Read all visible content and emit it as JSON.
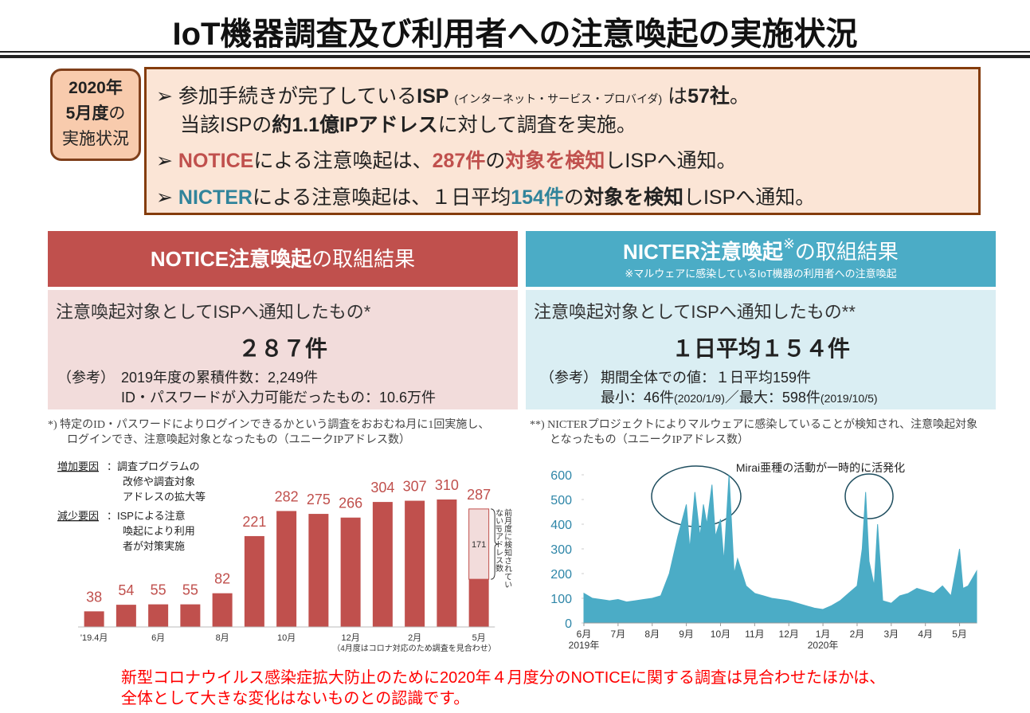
{
  "title": "IoT機器調査及び利用者への注意喚起の実施状況",
  "status_label": [
    "2020年",
    "5月度",
    "の",
    "実施状況"
  ],
  "summary": {
    "line1": [
      "参加手続きが完了している",
      "ISP",
      "(インターネット・サービス・プロバイダ)",
      "は",
      "57社",
      "。"
    ],
    "line2": [
      "当該ISPの",
      "約1.1億IPアドレス",
      "に対して調査を実施。"
    ],
    "line3": [
      "NOTICE",
      "による注意喚起は、",
      "287件",
      "の",
      "対象を検知",
      "しISPへ通知。"
    ],
    "line4": [
      "NICTER",
      "による注意喚起は、１日平均",
      "154件",
      "の",
      "対象を検知",
      "しISPへ通知。"
    ]
  },
  "notice": {
    "header": [
      "NOTICE注意喚起",
      "の取組結果"
    ],
    "subject": "注意喚起対象としてISPへ通知したもの*",
    "count": "２８７件",
    "ref_label": "（参考）",
    "ref": [
      "2019年度の累積件数：2,249件",
      "ID・パスワードが入力可能だったもの：10.6万件"
    ],
    "footnote": [
      "*) 特定のID・パスワードによりログインできるかという調査をおおむね月に1回実施し、",
      "ログインでき、注意喚起対象となったもの（ユニークIPアドレス数）"
    ]
  },
  "nicter": {
    "header": [
      "NICTER注意喚起",
      "※",
      "の取組結果"
    ],
    "header_note": "※マルウェアに感染しているIoT機器の利用者への注意喚起",
    "subject": "注意喚起対象としてISPへ通知したもの**",
    "count": "１日平均１５４件",
    "ref_label": "（参考）",
    "ref_line1": "期間全体での値：１日平均159件",
    "ref_line2": [
      "最小：46件",
      "(2020/1/9)",
      "／最大：598件",
      "(2019/10/5)"
    ],
    "footnote": [
      "**) NICTERプロジェクトによりマルウェアに感染していることが検知され、注意喚起対象",
      "となったもの（ユニークIPアドレス数）"
    ]
  },
  "chart_data": [
    {
      "type": "bar",
      "categories": [
        "'19.4月",
        null,
        "6月",
        null,
        "8月",
        null,
        "10月",
        null,
        "12月",
        null,
        "2月",
        null,
        "5月"
      ],
      "values": [
        38,
        54,
        55,
        55,
        82,
        221,
        282,
        275,
        266,
        304,
        307,
        310,
        287
      ],
      "color": "#c0504d",
      "highlight": {
        "category": "5月",
        "value": 171,
        "label": "前月度に検知されていないIPアドレス数",
        "color": "#f2dcdb"
      },
      "notes": [
        {
          "label": "増加要因",
          "lines": [
            "：調査プログラムの",
            "改修や調査対象",
            "アドレスの拡大等"
          ]
        },
        {
          "label": "減少要因",
          "lines": [
            "：ISPによる注意",
            "喚起により利用",
            "者が対策実施"
          ]
        }
      ],
      "footnote": "（4月度はコロナ対応のため調査を見合わせ）"
    },
    {
      "type": "area",
      "title": "Mirai亜種の活動が一時的に活発化",
      "color": "#4bacc6",
      "x": [
        0,
        0.25,
        0.5,
        0.75,
        1,
        1.25,
        1.5,
        1.75,
        2,
        2.25,
        2.5,
        2.75,
        3,
        3.1,
        3.25,
        3.4,
        3.5,
        3.6,
        3.75,
        3.85,
        4,
        4.1,
        4.25,
        4.4,
        4.5,
        4.75,
        5,
        5.25,
        5.5,
        5.75,
        6,
        6.25,
        6.5,
        6.75,
        7,
        7.25,
        7.5,
        7.75,
        8,
        8.15,
        8.25,
        8.35,
        8.5,
        8.6,
        8.75,
        9,
        9.25,
        9.5,
        9.75,
        10,
        10.25,
        10.5,
        10.75,
        11,
        11.1,
        11.25,
        11.5
      ],
      "values": [
        120,
        100,
        95,
        90,
        95,
        85,
        90,
        95,
        100,
        110,
        200,
        350,
        480,
        300,
        530,
        350,
        480,
        400,
        560,
        350,
        420,
        250,
        600,
        200,
        260,
        150,
        120,
        110,
        100,
        95,
        90,
        80,
        70,
        60,
        55,
        70,
        90,
        120,
        150,
        300,
        530,
        250,
        150,
        400,
        90,
        80,
        110,
        120,
        140,
        130,
        120,
        150,
        110,
        300,
        140,
        150,
        210
      ],
      "ylim": [
        0,
        600
      ],
      "yticks": [
        0,
        100,
        200,
        300,
        400,
        500,
        600
      ],
      "xlim": [
        0,
        11.5
      ],
      "xticks": [
        {
          "value": 0,
          "label": "6月"
        },
        {
          "value": 1,
          "label": "7月"
        },
        {
          "value": 2,
          "label": "8月"
        },
        {
          "value": 3,
          "label": "9月"
        },
        {
          "value": 4,
          "label": "10月"
        },
        {
          "value": 5,
          "label": "11月"
        },
        {
          "value": 6,
          "label": "12月"
        },
        {
          "value": 7,
          "label": "1月"
        },
        {
          "value": 8,
          "label": "2月"
        },
        {
          "value": 9,
          "label": "3月"
        },
        {
          "value": 10,
          "label": "4月"
        },
        {
          "value": 11,
          "label": "5月"
        }
      ],
      "year_labels": [
        {
          "value": 0,
          "label": "2019年"
        },
        {
          "value": 7,
          "label": "2020年"
        }
      ]
    }
  ],
  "conclusion": [
    "新型コロナウイルス感染症拡大防止のために2020年４月度分のNOTICEに関する調査は見合わせたほかは、",
    "全体として大きな変化はないものとの認識です。"
  ]
}
